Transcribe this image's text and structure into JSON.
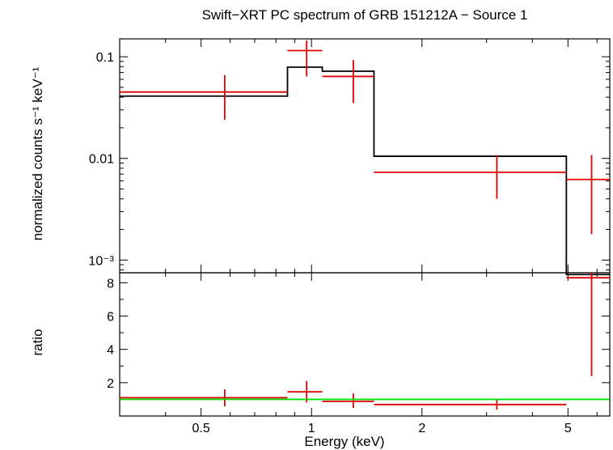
{
  "colors": {
    "data": "#e00000",
    "model": "#000000",
    "unity": "#00e000",
    "axes": "#000000",
    "background": "#ffffff"
  },
  "chart_data": [
    {
      "type": "scatter",
      "panel": "spectrum",
      "title": "Swift−XRT PC spectrum of GRB 151212A − Source 1",
      "ylabel": "normalized counts s⁻¹ keV⁻¹",
      "xlabel": "",
      "xscale": "log",
      "yscale": "log",
      "xlim": [
        0.3,
        6.5
      ],
      "ylim": [
        0.00075,
        0.15
      ],
      "grid": false,
      "yticks": [
        {
          "value": 0.1,
          "label": "0.1"
        },
        {
          "value": 0.01,
          "label": "0.01"
        },
        {
          "value": 0.001,
          "label": "10⁻³"
        }
      ],
      "series": [
        {
          "kind": "errorbars",
          "points": [
            {
              "x": 0.58,
              "xlo": 0.3,
              "xhi": 0.86,
              "y": 0.045,
              "ylo": 0.024,
              "yhi": 0.066
            },
            {
              "x": 0.97,
              "xlo": 0.86,
              "xhi": 1.07,
              "y": 0.115,
              "ylo": 0.064,
              "yhi": 0.145
            },
            {
              "x": 1.3,
              "xlo": 1.07,
              "xhi": 1.48,
              "y": 0.064,
              "ylo": 0.035,
              "yhi": 0.093
            },
            {
              "x": 3.2,
              "xlo": 1.48,
              "xhi": 4.95,
              "y": 0.0073,
              "ylo": 0.004,
              "yhi": 0.0108
            },
            {
              "x": 5.8,
              "xlo": 4.95,
              "xhi": 6.5,
              "y": 0.0062,
              "ylo": 0.0018,
              "yhi": 0.0108
            }
          ]
        },
        {
          "kind": "step",
          "bins": [
            {
              "xlo": 0.3,
              "xhi": 0.86,
              "y": 0.041
            },
            {
              "xlo": 0.86,
              "xhi": 1.07,
              "y": 0.079
            },
            {
              "xlo": 1.07,
              "xhi": 1.48,
              "y": 0.072
            },
            {
              "xlo": 1.48,
              "xhi": 4.95,
              "y": 0.0105
            },
            {
              "xlo": 4.95,
              "xhi": 6.5,
              "y": 0.00072
            }
          ]
        }
      ]
    },
    {
      "type": "scatter",
      "panel": "ratio",
      "title": "",
      "ylabel": "ratio",
      "xlabel": "Energy (keV)",
      "xscale": "log",
      "yscale": "linear",
      "xlim": [
        0.3,
        6.5
      ],
      "ylim": [
        0.0,
        8.6
      ],
      "grid": false,
      "xticks": [
        {
          "value": 0.5,
          "label": "0.5"
        },
        {
          "value": 1,
          "label": "1"
        },
        {
          "value": 2,
          "label": "2"
        },
        {
          "value": 5,
          "label": "5"
        }
      ],
      "yticks": [
        {
          "value": 2,
          "label": "2"
        },
        {
          "value": 4,
          "label": "4"
        },
        {
          "value": 6,
          "label": "6"
        },
        {
          "value": 8,
          "label": "8"
        }
      ],
      "reference_line": {
        "y": 1.0
      },
      "series": [
        {
          "kind": "errorbars",
          "points": [
            {
              "x": 0.58,
              "xlo": 0.3,
              "xhi": 0.86,
              "y": 1.1,
              "ylo": 0.58,
              "yhi": 1.6
            },
            {
              "x": 0.97,
              "xlo": 0.86,
              "xhi": 1.07,
              "y": 1.45,
              "ylo": 0.81,
              "yhi": 2.1
            },
            {
              "x": 1.3,
              "xlo": 1.07,
              "xhi": 1.48,
              "y": 0.88,
              "ylo": 0.48,
              "yhi": 1.35
            },
            {
              "x": 3.2,
              "xlo": 1.48,
              "xhi": 4.95,
              "y": 0.69,
              "ylo": 0.38,
              "yhi": 1.02
            },
            {
              "x": 5.8,
              "xlo": 4.95,
              "xhi": 6.5,
              "y": 8.3,
              "ylo": 2.4,
              "yhi": 8.6
            }
          ]
        }
      ]
    }
  ]
}
